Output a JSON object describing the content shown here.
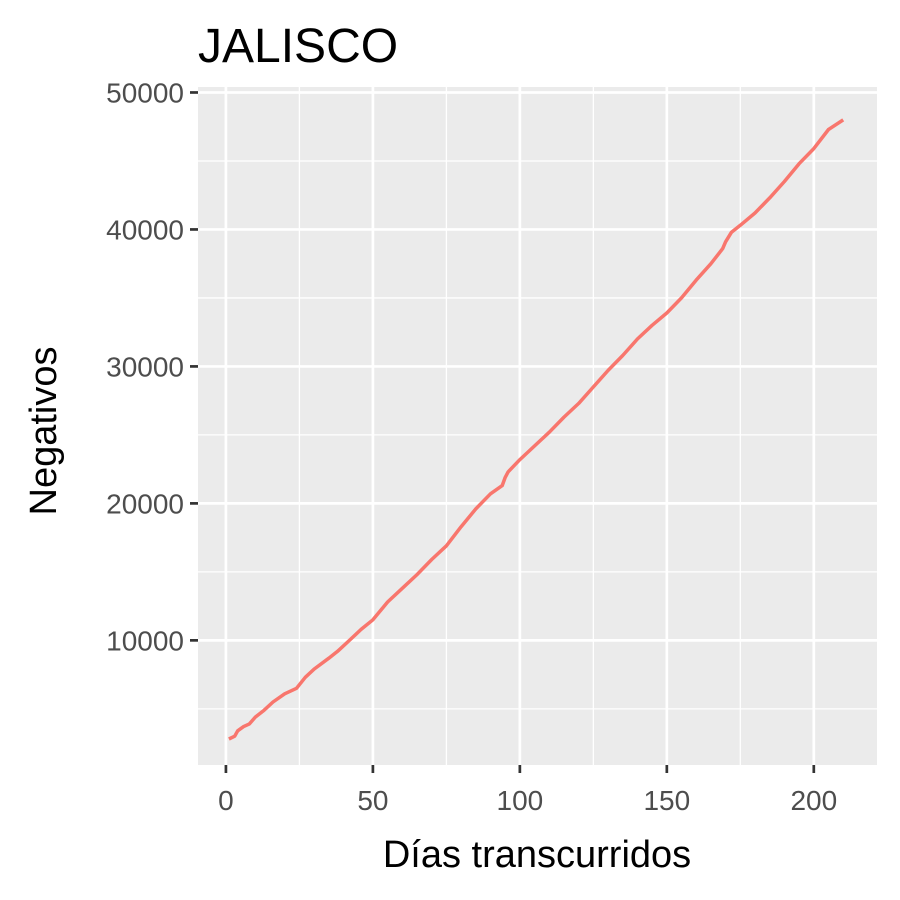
{
  "chart_data": {
    "type": "line",
    "title": "JALISCO",
    "xlabel": "Días transcurridos",
    "ylabel": "Negativos",
    "xlim": [
      -9.5,
      221.5
    ],
    "ylim": [
      900,
      50400
    ],
    "x_ticks": [
      0,
      50,
      100,
      150,
      200
    ],
    "x_tick_labels": [
      "0",
      "50",
      "100",
      "150",
      "200"
    ],
    "y_ticks": [
      10000,
      20000,
      30000,
      40000,
      50000
    ],
    "y_tick_labels": [
      "10000",
      "20000",
      "30000",
      "40000",
      "50000"
    ],
    "grid": true,
    "panel_background": "#ebebeb",
    "grid_color": "#ffffff",
    "series": [
      {
        "color": "#f8766d",
        "x": [
          1,
          3,
          4,
          6,
          8,
          10,
          13,
          16,
          20,
          24,
          27,
          30,
          35,
          38,
          42,
          46,
          50,
          55,
          60,
          65,
          70,
          75,
          80,
          85,
          90,
          94,
          95,
          96,
          100,
          105,
          110,
          115,
          120,
          125,
          130,
          135,
          140,
          145,
          150,
          155,
          160,
          165,
          169,
          170,
          172,
          175,
          180,
          185,
          190,
          195,
          200,
          205,
          210
        ],
        "y": [
          2800,
          3000,
          3400,
          3700,
          3900,
          4400,
          4900,
          5500,
          6100,
          6500,
          7300,
          7900,
          8700,
          9200,
          10000,
          10800,
          11500,
          12800,
          13800,
          14800,
          15900,
          16900,
          18300,
          19600,
          20700,
          21300,
          21900,
          22300,
          23200,
          24200,
          25200,
          26300,
          27300,
          28500,
          29700,
          30800,
          32000,
          33000,
          33900,
          35000,
          36300,
          37500,
          38600,
          39100,
          39800,
          40300,
          41200,
          42300,
          43500,
          44800,
          45900,
          47300,
          48000
        ]
      }
    ]
  }
}
